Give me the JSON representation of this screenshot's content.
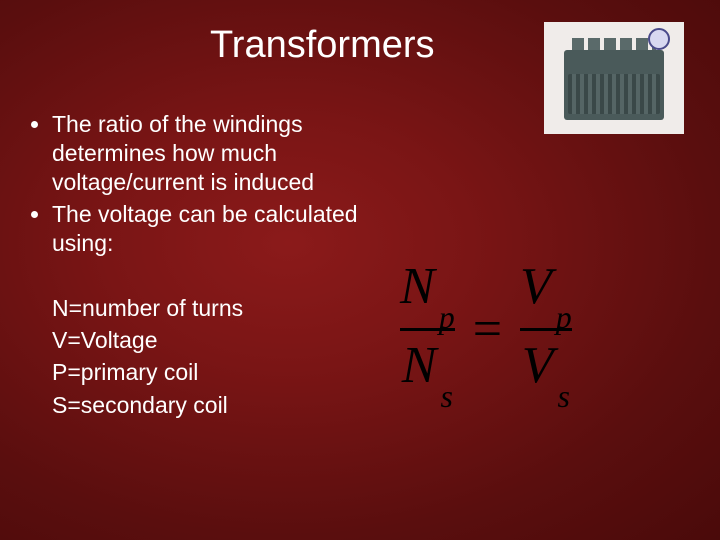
{
  "title": "Transformers",
  "bullets": [
    "The ratio of the windings determines how much voltage/current is induced",
    "The voltage can be calculated using:"
  ],
  "definitions": {
    "n": "N=number of turns",
    "v": "V=Voltage",
    "p": "P=primary coil",
    "s": "S=secondary coil"
  },
  "equation": {
    "left_num_var": "N",
    "left_num_sub": "p",
    "left_den_var": "N",
    "left_den_sub": "s",
    "eq": "=",
    "right_num_var": "V",
    "right_num_sub": "p",
    "right_den_var": "V",
    "right_den_sub": "s"
  },
  "colors": {
    "text": "#ffffff",
    "equation": "#000000",
    "bg_center": "#8b1a1a",
    "bg_edge": "#4a0a0a"
  },
  "typography": {
    "title_fontsize": 38,
    "body_fontsize": 23,
    "equation_fontsize": 52,
    "sub_fontsize": 32,
    "body_family": "Arial",
    "equation_family": "Times New Roman"
  },
  "image": {
    "label": "transformer-photo",
    "bg": "#f0ecea",
    "body_color": "#4a5a5a"
  }
}
